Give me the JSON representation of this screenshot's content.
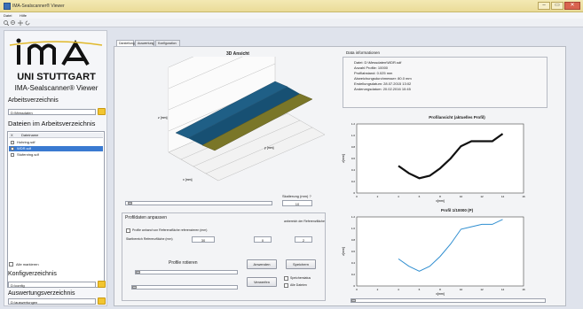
{
  "window": {
    "title": "IMA-Sealscanner® Viewer",
    "controls": {
      "minimize": "–",
      "maximize": "▭",
      "close": "✕"
    }
  },
  "menu": [
    "Datei",
    "Hilfe"
  ],
  "toolbar": {
    "icons": [
      "zoom-in-icon",
      "zoom-out-icon",
      "pan-icon",
      "rotate-icon"
    ]
  },
  "logo": {
    "text": "IMA",
    "university": "UNI STUTTGART",
    "product": "IMA-Sealscanner® Viewer"
  },
  "left": {
    "workdir_label": "Arbeitsverzeichnis",
    "workdir_value": "D:\\Messdaten",
    "files_label": "Dateien im Arbeitsverzeichnis",
    "files_header": [
      "X",
      "Dateiname"
    ],
    "files": [
      {
        "name": "Hohring.sdf",
        "selected": false
      },
      {
        "name": "WDR.sdf",
        "selected": true
      },
      {
        "name": "Stufenring.sdf",
        "selected": false
      }
    ],
    "select_all_label": "Alle markieren",
    "config_label": "Konfigverzeichnis",
    "config_value": "D:\\config",
    "eval_label": "Auswertungsverzeichnis",
    "eval_value": "D:\\auswertungen"
  },
  "tabs": [
    "Darstellung",
    "Auswertung",
    "Konfiguration"
  ],
  "active_tab": 0,
  "plot3d": {
    "title": "3D Ansicht",
    "xlabel": "x [mm]",
    "ylabel": "y [mm]",
    "zlabel": "z [mm]",
    "slider_label": "Skalierung (mm) ?",
    "slider_value": "10"
  },
  "profile_group": {
    "title": "Profildaten anpassen",
    "checkbox_label": "Profile anhand von Referenzfläche referenzieren (mm)",
    "distance_label": "Startbereich Referenzfläche (mm)",
    "distance_value": "30",
    "header_label": "anbereich der Referenzfläche",
    "range_from": "0",
    "range_to": "2",
    "rotate_label": "Profile rotieren",
    "btn_apply": "Anwenden",
    "btn_save": "Speichern",
    "btn_reset": "Verwerfen",
    "opt_save_label": "Speicherstatus",
    "opt_all_label": "Alle Dateien"
  },
  "datainfo": {
    "title": "Data informationen",
    "lines": [
      "Datei: D:\\Messdaten\\WDR.sdf",
      "Anzahl Profile: 10000",
      "Profilabstand: 0.025 mm",
      "Abweichungsdurchmesser: 80.0 mm",
      "Erstellungsdatum: 28.07.2015 13:02",
      "Änderungsdatum: 20.02.2016 10:45"
    ]
  },
  "plot_top": {
    "title": "Profilansicht (aktuelles Profil)",
    "xlabel": "x[mm]",
    "ylabel": "z[mm]",
    "xticks": [
      "0",
      "2",
      "4",
      "6",
      "8",
      "10",
      "12",
      "14",
      "16"
    ],
    "yticks": [
      "1.2",
      "1.0",
      "0.8",
      "0.6",
      "0.4",
      "0.2",
      "0"
    ]
  },
  "plot_bottom": {
    "title": "Profil 1/10000 (P)",
    "xlabel": "x[mm]",
    "ylabel": "z[mm]",
    "xticks": [
      "0",
      "2",
      "4",
      "6",
      "8",
      "10",
      "12",
      "14",
      "16"
    ],
    "yticks": [
      "1.2",
      "1.0",
      "0.8",
      "0.6",
      "0.4",
      "0.2",
      "0"
    ]
  },
  "chart_data": [
    {
      "type": "line",
      "title": "Profilansicht (aktuelles Profil)",
      "xlabel": "x[mm]",
      "ylabel": "z[mm]",
      "x": [
        4.0,
        5.0,
        6.0,
        7.0,
        8.0,
        9.0,
        10.0,
        11.0,
        12.0,
        13.0,
        14.0
      ],
      "y": [
        0.55,
        0.4,
        0.3,
        0.35,
        0.5,
        0.7,
        0.95,
        1.05,
        1.05,
        1.05,
        1.2
      ],
      "xlim": [
        0,
        16
      ],
      "ylim": [
        0,
        1.4
      ]
    },
    {
      "type": "line",
      "title": "Profil 1/10000 (P)",
      "xlabel": "x[mm]",
      "ylabel": "z[mm]",
      "x": [
        4.0,
        5.0,
        6.0,
        7.0,
        8.0,
        9.0,
        10.0,
        11.0,
        12.0,
        13.0,
        14.0
      ],
      "y": [
        0.55,
        0.4,
        0.3,
        0.4,
        0.6,
        0.85,
        1.15,
        1.2,
        1.25,
        1.25,
        1.35
      ],
      "xlim": [
        0,
        16
      ],
      "ylim": [
        0,
        1.4
      ]
    }
  ],
  "colors": {
    "accent": "#3a7ad1",
    "titlebar": "#eadb98",
    "surface_blue": "#1f5f86",
    "surface_olive": "#7a7628",
    "line_dark": "#111111",
    "line_blue": "#2f8ed0"
  }
}
